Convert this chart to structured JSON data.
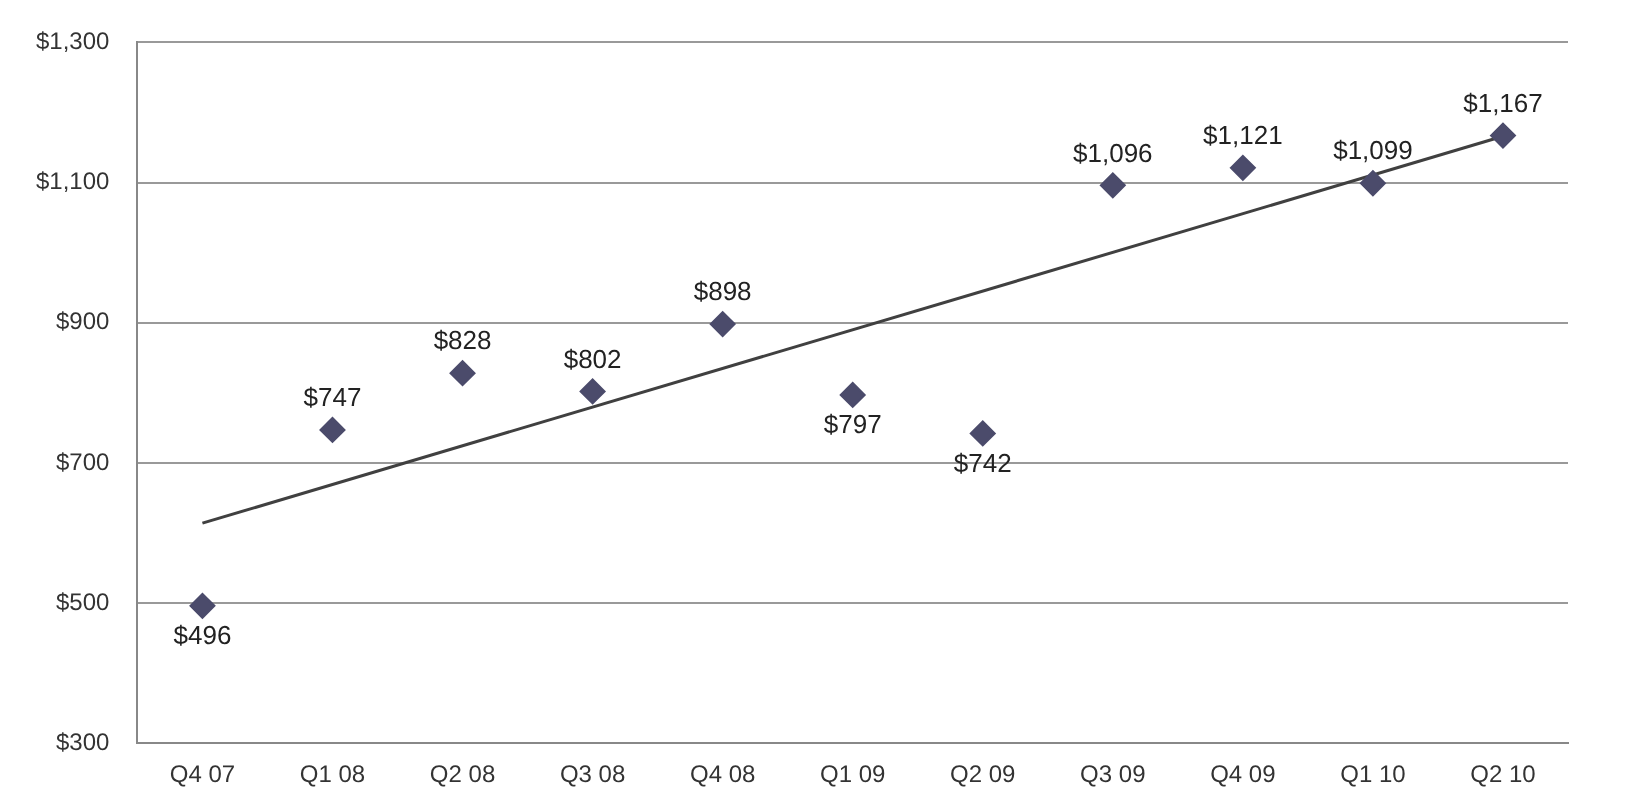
{
  "chart_data": {
    "type": "scatter",
    "categories": [
      "Q4 07",
      "Q1 08",
      "Q2 08",
      "Q3 08",
      "Q4 08",
      "Q1 09",
      "Q2 09",
      "Q3 09",
      "Q4 09",
      "Q1 10",
      "Q2 10"
    ],
    "series": [
      {
        "color": "#4b4b6b",
        "marker": "diamond",
        "values": [
          496,
          747,
          828,
          802,
          898,
          797,
          742,
          1096,
          1121,
          1099,
          1167
        ],
        "value_labels": [
          "$496",
          "$747",
          "$828",
          "$802",
          "$898",
          "$797",
          "$742",
          "$1,096",
          "$1,121",
          "$1,099",
          "$1,167"
        ]
      },
      {
        "type": "line",
        "color": "#404040",
        "x": [
          "Q4 07",
          "Q2 10"
        ],
        "values": [
          614,
          1166
        ],
        "marker": "none"
      }
    ],
    "ylim": [
      300,
      1300
    ],
    "yticks": [
      {
        "value": 300,
        "label": "$300"
      },
      {
        "value": 500,
        "label": "$500"
      },
      {
        "value": 700,
        "label": "$700"
      },
      {
        "value": 900,
        "label": "$900"
      },
      {
        "value": 1100,
        "label": "$1,100"
      },
      {
        "value": 1300,
        "label": "$1,300"
      }
    ],
    "grid": "y",
    "legend": false
  }
}
